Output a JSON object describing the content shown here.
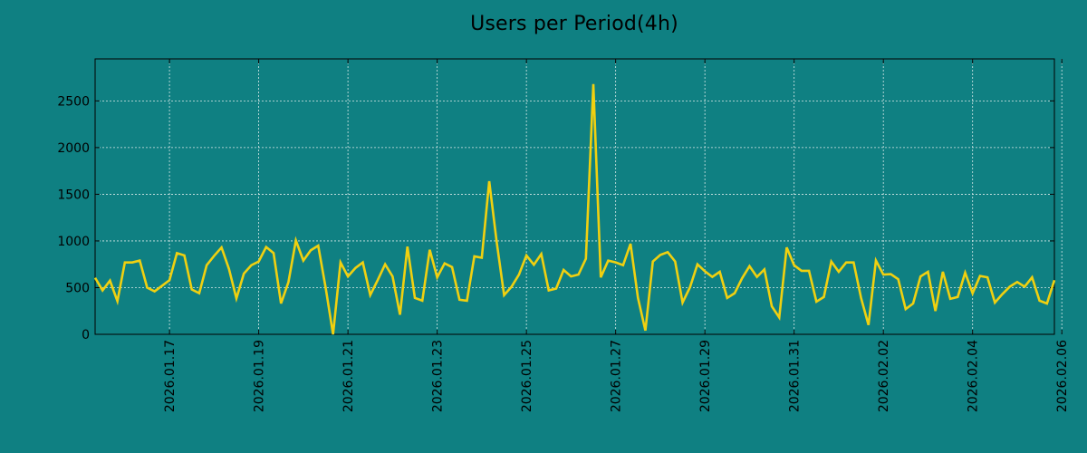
{
  "chart_data": {
    "type": "line",
    "title": "Users per Period(4h)",
    "xlabel": "",
    "ylabel": "",
    "ylim": [
      0,
      2950
    ],
    "yticks": [
      0,
      500,
      1000,
      1500,
      2000,
      2500
    ],
    "xticks": [
      "2026.01.17",
      "2026.01.19",
      "2026.01.21",
      "2026.01.23",
      "2026.01.25",
      "2026.01.27",
      "2026.01.29",
      "2026.01.31",
      "2026.02.02",
      "2026.02.04",
      "2026.02.06"
    ],
    "grid": true,
    "period_hours": 4,
    "series": [
      {
        "name": "Users",
        "color": "#f0d010",
        "values": [
          605,
          470,
          575,
          355,
          770,
          770,
          790,
          500,
          460,
          520,
          580,
          870,
          845,
          480,
          440,
          740,
          840,
          930,
          700,
          385,
          650,
          740,
          780,
          935,
          870,
          330,
          560,
          1005,
          790,
          900,
          950,
          500,
          0,
          770,
          620,
          710,
          770,
          420,
          580,
          750,
          620,
          210,
          940,
          390,
          360,
          905,
          610,
          760,
          720,
          370,
          360,
          835,
          820,
          1640,
          990,
          420,
          510,
          640,
          845,
          745,
          860,
          470,
          490,
          690,
          620,
          640,
          810,
          2680,
          610,
          790,
          770,
          740,
          970,
          390,
          40,
          780,
          850,
          880,
          780,
          340,
          505,
          750,
          675,
          615,
          670,
          390,
          440,
          600,
          730,
          615,
          695,
          300,
          180,
          930,
          740,
          680,
          680,
          350,
          400,
          780,
          670,
          770,
          770,
          390,
          100,
          790,
          640,
          645,
          590,
          270,
          330,
          620,
          670,
          250,
          670,
          380,
          400,
          660,
          440,
          625,
          610,
          340,
          430,
          510,
          560,
          510,
          610,
          360,
          330,
          580
        ]
      }
    ]
  }
}
